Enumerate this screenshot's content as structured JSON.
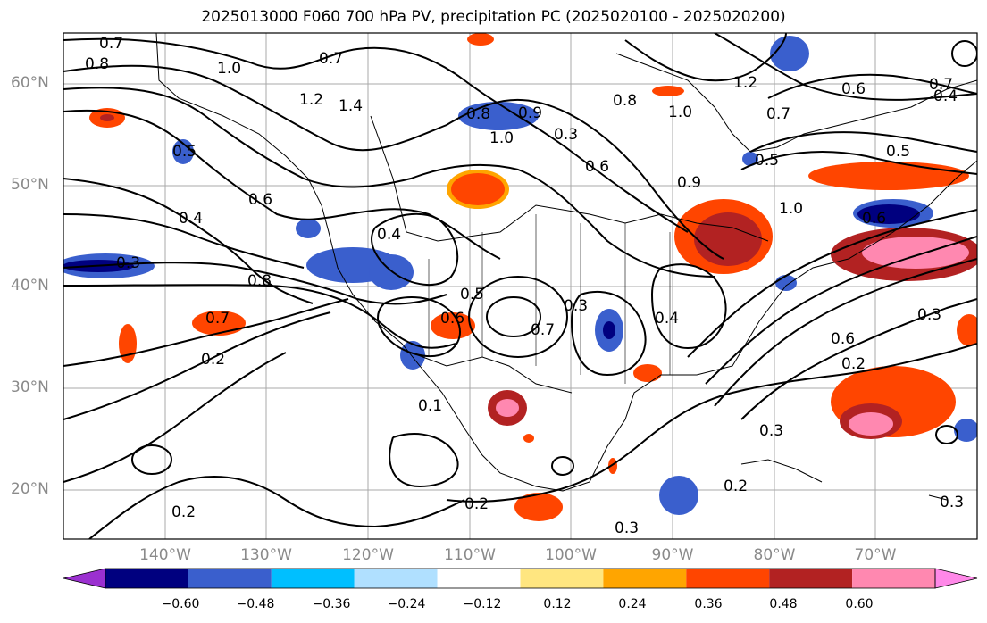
{
  "title": "2025013000 F060 700 hPa PV, precipitation PC (2025020100 - 2025020200)",
  "lat_labels": [
    "60°N",
    "50°N",
    "40°N",
    "30°N",
    "20°N"
  ],
  "lon_labels": [
    "140°W",
    "130°W",
    "120°W",
    "110°W",
    "100°W",
    "90°W",
    "80°W",
    "70°W"
  ],
  "colorbar": {
    "ticks": [
      "−0.60",
      "−0.48",
      "−0.36",
      "−0.24",
      "−0.12",
      "0.12",
      "0.24",
      "0.36",
      "0.48",
      "0.60"
    ],
    "colors": [
      "#9b30d0",
      "#00007f",
      "#3a5fcd",
      "#00bfff",
      "#b0e0ff",
      "#ffffff",
      "#ffe680",
      "#ffa500",
      "#ff4500",
      "#b22222",
      "#ff88b0",
      "#ff88e8"
    ]
  },
  "contour_labels": [
    {
      "text": "0.7"
    },
    {
      "text": "0.8"
    },
    {
      "text": "0.7"
    },
    {
      "text": "1.0"
    },
    {
      "text": "1.2"
    },
    {
      "text": "1.4"
    },
    {
      "text": "0.5"
    },
    {
      "text": "0.6"
    },
    {
      "text": "0.4"
    },
    {
      "text": "0.3"
    },
    {
      "text": "0.8"
    },
    {
      "text": "0.7"
    },
    {
      "text": "0.2"
    },
    {
      "text": "0.4"
    },
    {
      "text": "0.5"
    },
    {
      "text": "0.6"
    },
    {
      "text": "0.7"
    },
    {
      "text": "0.8"
    },
    {
      "text": "0.9"
    },
    {
      "text": "1.0"
    },
    {
      "text": "1.2"
    },
    {
      "text": "0.8"
    },
    {
      "text": "1.0"
    },
    {
      "text": "0.3"
    },
    {
      "text": "0.6"
    },
    {
      "text": "0.7"
    },
    {
      "text": "0.5"
    },
    {
      "text": "0.6"
    },
    {
      "text": "1.0"
    },
    {
      "text": "0.3"
    },
    {
      "text": "0.6"
    },
    {
      "text": "0.2"
    },
    {
      "text": "0.3"
    },
    {
      "text": "0.2"
    },
    {
      "text": "0.2"
    },
    {
      "text": "0.3"
    },
    {
      "text": "0.3"
    },
    {
      "text": "0.4"
    },
    {
      "text": "0.7"
    },
    {
      "text": "0.6"
    },
    {
      "text": "0.4"
    },
    {
      "text": "0.5"
    },
    {
      "text": "0.3"
    },
    {
      "text": "0.9"
    },
    {
      "text": "0.2"
    },
    {
      "text": "0.1"
    }
  ]
}
